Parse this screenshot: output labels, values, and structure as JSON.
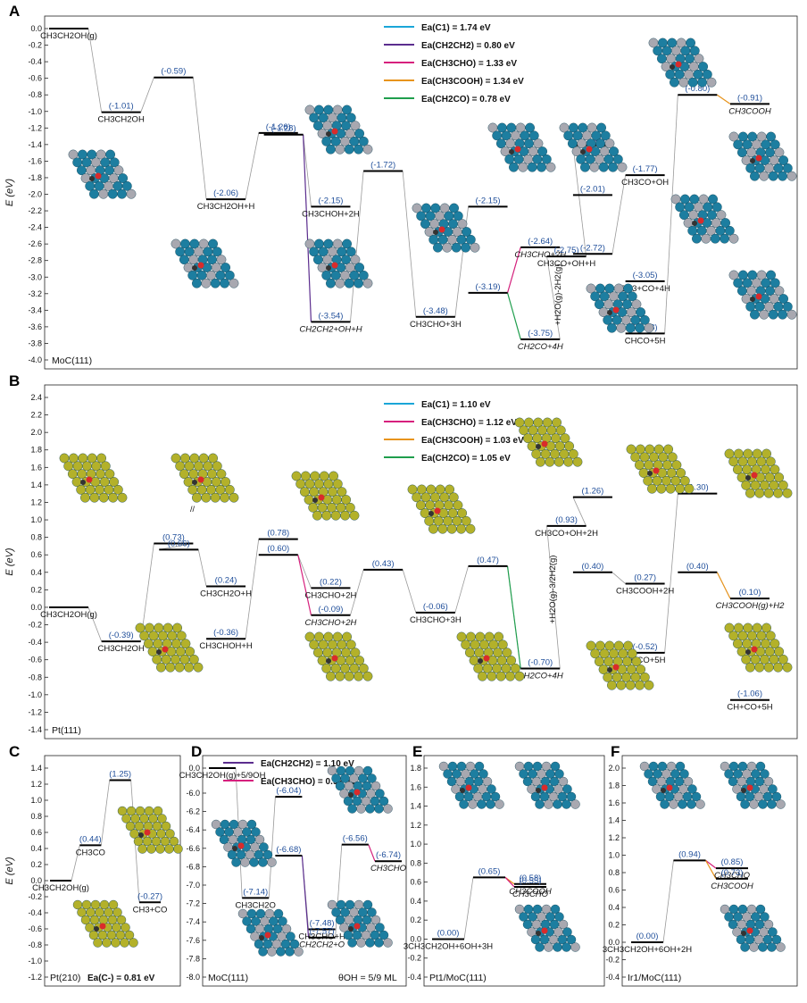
{
  "colors": {
    "C1": "#1aa6d8",
    "CH2CH2": "#5b2d8e",
    "CH3CHO": "#d6207d",
    "CH3COOH": "#e8941c",
    "CH2CO": "#1f9e4d",
    "value": "#1f4e9a",
    "level": "#000000",
    "path": "#9a9a9a",
    "MoC_atom": "#1d7ea0",
    "C_atom": "#a8a8b0",
    "Pt_atom": "#b3b12a"
  },
  "chart_data": [
    {
      "id": "A",
      "type": "line",
      "panel_label": "A",
      "surface": "MoC(111)",
      "ylabel": "E (eV)",
      "ylim": [
        -4.0,
        0.0
      ],
      "yticks": [
        0.0,
        -0.2,
        -0.4,
        -0.6,
        -0.8,
        -1.0,
        -1.2,
        -1.4,
        -1.6,
        -1.8,
        -2.0,
        -2.2,
        -2.4,
        -2.6,
        -2.8,
        -3.0,
        -3.2,
        -3.4,
        -3.6,
        -3.8,
        -4.0
      ],
      "legend": [
        {
          "text": "Ea(C1) = 1.74 eV",
          "color": "C1"
        },
        {
          "text": "Ea(CH2CH2) = 0.80 eV",
          "color": "CH2CH2"
        },
        {
          "text": "Ea(CH3CHO) = 1.33 eV",
          "color": "CH3CHO"
        },
        {
          "text": "Ea(CH3COOH) = 1.34 eV",
          "color": "CH3COOH"
        },
        {
          "text": "Ea(CH2CO) = 0.78 eV",
          "color": "CH2CO"
        }
      ],
      "levels": [
        {
          "x": 0,
          "y": 0.0,
          "label": "CH3CH2OH(g)"
        },
        {
          "x": 1,
          "y": -1.01,
          "value": "(-1.01)",
          "label": "CH3CH2OH"
        },
        {
          "x": 2,
          "y": -0.59,
          "value": "(-0.59)"
        },
        {
          "x": 3,
          "y": -2.06,
          "value": "(-2.06)",
          "label": "CH3CH2OH+H"
        },
        {
          "x": 4,
          "y": -1.26,
          "value": "(-1.26)"
        },
        {
          "x": 4.1,
          "y": -1.28,
          "value": "(-1.28)"
        },
        {
          "x": 5,
          "y": -2.15,
          "value": "(-2.15)",
          "label": "CH3CHOH+2H"
        },
        {
          "x": 5,
          "y": -3.54,
          "value": "(-3.54)",
          "label": "CH2CH2+OH+H",
          "color": "CH2CH2"
        },
        {
          "x": 6,
          "y": -1.72,
          "value": "(-1.72)"
        },
        {
          "x": 7,
          "y": -3.48,
          "value": "(-3.48)",
          "label": "CH3CHO+3H"
        },
        {
          "x": 8,
          "y": -2.15,
          "value": "(-2.15)"
        },
        {
          "x": 8,
          "y": -3.19,
          "value": "(-3.19)"
        },
        {
          "x": 9,
          "y": -2.64,
          "value": "(-2.64)",
          "label": "CH3CHO+2H",
          "color": "CH3CHO"
        },
        {
          "x": 9,
          "y": -3.75,
          "value": "(-3.75)",
          "label": "CH2CO+4H",
          "color": "CH2CO"
        },
        {
          "x": 9.5,
          "y": -2.75,
          "value": "(-2.75)",
          "label": "CH3CO+OH+H"
        },
        {
          "x": 10,
          "y": -1.41,
          "value": "(-1.41)"
        },
        {
          "x": 10,
          "y": -2.01,
          "value": "(-2.01)"
        },
        {
          "x": 10,
          "y": -2.72,
          "value": "(-2.72)"
        },
        {
          "x": 11,
          "y": -1.77,
          "value": "(-1.77)",
          "label": "CH3CO+OH"
        },
        {
          "x": 11,
          "y": -3.05,
          "value": "(-3.05)",
          "label": "CH3+CO+4H"
        },
        {
          "x": 11,
          "y": -3.68,
          "value": "(-3.68)",
          "label": "CHCO+5H"
        },
        {
          "x": 12,
          "y": -0.8,
          "value": "(-0.80)"
        },
        {
          "x": 13,
          "y": -0.91,
          "value": "(-0.91)",
          "label": "CH3COOH",
          "color": "CH3COOH"
        }
      ],
      "annotations": [
        "+H2O(g)-2H2(g)"
      ]
    },
    {
      "id": "B",
      "type": "line",
      "panel_label": "B",
      "surface": "Pt(111)",
      "ylabel": "E (eV)",
      "ylim": [
        -1.4,
        2.4
      ],
      "yticks": [
        2.4,
        2.2,
        2.0,
        1.8,
        1.6,
        1.4,
        1.2,
        1.0,
        0.8,
        0.6,
        0.4,
        0.2,
        0.0,
        -0.2,
        -0.4,
        -0.6,
        -0.8,
        -1.0,
        -1.2,
        -1.4
      ],
      "legend": [
        {
          "text": "Ea(C1) = 1.10 eV",
          "color": "C1"
        },
        {
          "text": "Ea(CH3CHO) = 1.12 eV",
          "color": "CH3CHO"
        },
        {
          "text": "Ea(CH3COOH) = 1.03 eV",
          "color": "CH3COOH"
        },
        {
          "text": "Ea(CH2CO) = 1.05 eV",
          "color": "CH2CO"
        }
      ],
      "levels": [
        {
          "x": 0,
          "y": 0.0,
          "label": "CH3CH2OH(g)"
        },
        {
          "x": 1,
          "y": -0.39,
          "value": "(-0.39)",
          "label": "CH3CH2OH"
        },
        {
          "x": 2,
          "y": 0.73,
          "value": "(0.73)"
        },
        {
          "x": 2.1,
          "y": 0.66,
          "value": "(0.66)"
        },
        {
          "x": 3,
          "y": 0.24,
          "value": "(0.24)",
          "label": "CH3CH2O+H"
        },
        {
          "x": 3,
          "y": -0.36,
          "value": "(-0.36)",
          "label": "CH3CHOH+H"
        },
        {
          "x": 4,
          "y": 0.78,
          "value": "(0.78)"
        },
        {
          "x": 4,
          "y": 0.6,
          "value": "(0.60)"
        },
        {
          "x": 5,
          "y": 0.22,
          "value": "(0.22)",
          "label": "CH3CHO+2H"
        },
        {
          "x": 5,
          "y": -0.09,
          "value": "(-0.09)",
          "label": "CH3CHO+2H",
          "color": "CH3CHO"
        },
        {
          "x": 6,
          "y": 0.43,
          "value": "(0.43)"
        },
        {
          "x": 7,
          "y": -0.06,
          "value": "(-0.06)",
          "label": "CH3CHO+3H"
        },
        {
          "x": 8,
          "y": 0.47,
          "value": "(0.47)"
        },
        {
          "x": 9,
          "y": -0.7,
          "value": "(-0.70)",
          "label": "CH2CO+4H",
          "color": "CH2CO"
        },
        {
          "x": 9.5,
          "y": 0.93,
          "value": "(0.93)",
          "label": "CH3CO+OH+2H"
        },
        {
          "x": 10,
          "y": 1.26,
          "value": "(1.26)"
        },
        {
          "x": 10,
          "y": 0.4,
          "value": "(0.40)"
        },
        {
          "x": 11,
          "y": 0.27,
          "value": "(0.27)",
          "label": "CH3COOH+2H"
        },
        {
          "x": 11,
          "y": -0.52,
          "value": "(-0.52)",
          "label": "CHCO+5H"
        },
        {
          "x": 12,
          "y": 1.3,
          "value": "(1.30)"
        },
        {
          "x": 12,
          "y": 0.4,
          "value": "(0.40)"
        },
        {
          "x": 13,
          "y": 0.1,
          "value": "(0.10)",
          "label": "CH3COOH(g)+H2",
          "color": "CH3COOH"
        },
        {
          "x": 13,
          "y": -1.06,
          "value": "(-1.06)",
          "label": "CH+CO+5H"
        }
      ],
      "annotations": [
        "+H2O(g)-3/2H2(g)"
      ]
    },
    {
      "id": "C",
      "type": "line",
      "panel_label": "C",
      "surface": "Pt(210)",
      "ylabel": "E (eV)",
      "ylim": [
        -1.2,
        1.4
      ],
      "yticks": [
        1.4,
        1.2,
        1.0,
        0.8,
        0.6,
        0.4,
        0.2,
        0.0,
        -0.2,
        -0.4,
        -0.6,
        -0.8,
        -1.0,
        -1.2
      ],
      "legend": [
        {
          "text": "Ea(C-) = 0.81 eV",
          "color": "C1"
        }
      ],
      "levels": [
        {
          "x": 0,
          "y": 0.0,
          "label": "CH3CH2OH(g)"
        },
        {
          "x": 1,
          "y": 0.44,
          "value": "(0.44)",
          "label": "CH3CO"
        },
        {
          "x": 2,
          "y": 1.25,
          "value": "(1.25)"
        },
        {
          "x": 3,
          "y": -0.27,
          "value": "(-0.27)",
          "label": "CH3+CO"
        }
      ]
    },
    {
      "id": "D",
      "type": "line",
      "panel_label": "D",
      "surface": "MoC(111)",
      "coverage": "θOH = 5/9 ML",
      "ylim": [
        -8.0,
        0.0
      ],
      "yticks": [
        0.0,
        -6.0,
        -6.2,
        -6.4,
        -6.6,
        -6.8,
        -7.0,
        -7.2,
        -7.4,
        -7.6,
        -7.8,
        -8.0
      ],
      "legend": [
        {
          "text": "Ea(CH2CH2) = 1.10 eV",
          "color": "CH2CH2"
        },
        {
          "text": "Ea(CH3CHO) = 0.92 eV",
          "color": "CH3CHO"
        }
      ],
      "levels": [
        {
          "x": 0,
          "y": 0.0,
          "label": "CH3CH2OH(g)+5/9OH"
        },
        {
          "x": 1,
          "y": -7.14,
          "value": "(-7.14)",
          "label": "CH3CH2O"
        },
        {
          "x": 2,
          "y": -6.04,
          "value": "(-6.04)"
        },
        {
          "x": 2,
          "y": -6.68,
          "value": "(-6.68)"
        },
        {
          "x": 3,
          "y": -7.48,
          "value": "(-7.48)",
          "label": "CH3CHO+H"
        },
        {
          "x": 3,
          "y": -7.57,
          "value": "(-7.57)",
          "label": "CH2CH2+O",
          "color": "CH2CH2"
        },
        {
          "x": 4,
          "y": -6.56,
          "value": "(-6.56)"
        },
        {
          "x": 5,
          "y": -6.74,
          "value": "(-6.74)",
          "label": "CH3CHO",
          "color": "CH3CHO"
        }
      ]
    },
    {
      "id": "E",
      "type": "line",
      "panel_label": "E",
      "surface": "Pt1/MoC(111)",
      "ylim": [
        -0.4,
        1.8
      ],
      "yticks": [
        1.8,
        1.6,
        1.4,
        1.2,
        1.0,
        0.8,
        0.6,
        0.4,
        0.2,
        0.0,
        -0.2,
        -0.4
      ],
      "levels": [
        {
          "x": 0,
          "y": 0.0,
          "value": "(0.00)",
          "label": "3CH3CH2OH+6OH+3H"
        },
        {
          "x": 1,
          "y": 0.65,
          "value": "(0.65)"
        },
        {
          "x": 2,
          "y": 0.58,
          "value": "(0.58)",
          "label": "CH3COOH",
          "color": "CH3COOH"
        },
        {
          "x": 2,
          "y": 0.55,
          "value": "(0.55)",
          "label": "CH3CHO",
          "color": "CH3CHO"
        }
      ]
    },
    {
      "id": "F",
      "type": "line",
      "panel_label": "F",
      "surface": "Ir1/MoC(111)",
      "ylim": [
        -0.4,
        2.0
      ],
      "yticks": [
        2.0,
        1.8,
        1.6,
        1.4,
        1.2,
        1.0,
        0.8,
        0.6,
        0.4,
        0.2,
        0.0,
        -0.2,
        -0.4
      ],
      "levels": [
        {
          "x": 0,
          "y": 0.0,
          "value": "(0.00)",
          "label": "3CH3CH2OH+6OH+2H"
        },
        {
          "x": 1,
          "y": 0.94,
          "value": "(0.94)"
        },
        {
          "x": 2,
          "y": 0.85,
          "value": "(0.85)",
          "label": "CH3CHO",
          "color": "CH3CHO"
        },
        {
          "x": 2,
          "y": 0.73,
          "value": "(0.73)",
          "label": "CH3COOH",
          "color": "CH3COOH"
        }
      ]
    }
  ]
}
